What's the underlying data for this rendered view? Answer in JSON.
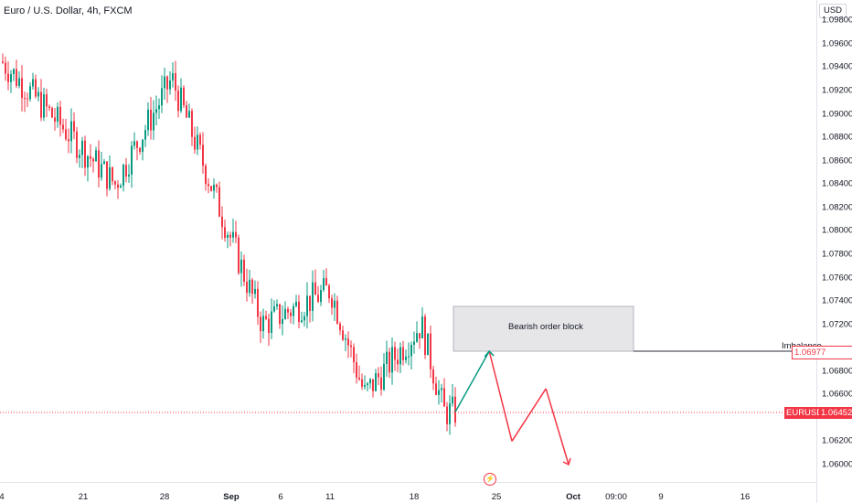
{
  "header": {
    "title": "Euro / U.S. Dollar, 4h, FXCM"
  },
  "price_axis": {
    "currency": "USD",
    "ticks": [
      "1.09800",
      "1.09600",
      "1.09400",
      "1.09200",
      "1.09000",
      "1.08800",
      "1.08600",
      "1.08400",
      "1.08200",
      "1.08000",
      "1.07800",
      "1.07600",
      "1.07400",
      "1.07200",
      "1.06800",
      "1.06600",
      "1.06200",
      "1.06000"
    ]
  },
  "time_axis": {
    "ticks": [
      "4",
      "21",
      "28",
      "Sep",
      "6",
      "11",
      "18",
      "25",
      "Oct",
      "09:00",
      "9",
      "16"
    ]
  },
  "annotations": {
    "order_block_label": "Bearish order block",
    "imbalance_label": "Imbalance",
    "imbalance_value": "1.06977",
    "symbol_label": "EURUSD",
    "current_value": "1.06452",
    "alert_icon": "lightning-bolt-icon"
  },
  "colors": {
    "up": "#089981",
    "down": "#f23645",
    "projection_up": "#089981",
    "projection_down": "#f23645",
    "order_block_fill": "#e6e6e9",
    "current_price_line": "#f23645"
  },
  "chart_data": {
    "type": "candlestick",
    "title": "Euro / U.S. Dollar, 4h, FXCM",
    "ylabel": "USD",
    "ylim": [
      1.0585,
      1.0995
    ],
    "x_range": [
      "2023-08-14",
      "2023-10-21"
    ],
    "current_price": 1.06452,
    "key_closes": [
      {
        "date": "2023-08-14",
        "close": 1.0945
      },
      {
        "date": "2023-08-24",
        "close": 1.084
      },
      {
        "date": "2023-08-29",
        "close": 1.093
      },
      {
        "date": "2023-09-06",
        "close": 1.072
      },
      {
        "date": "2023-09-12",
        "close": 1.075
      },
      {
        "date": "2023-09-15",
        "close": 1.066
      },
      {
        "date": "2023-09-20",
        "close": 1.072
      },
      {
        "date": "2023-09-22",
        "close": 1.0645
      }
    ],
    "zones": [
      {
        "label": "Bearish order block",
        "from": "2023-09-20",
        "to": "2023-09-30",
        "low": 1.06977,
        "high": 1.0735
      }
    ],
    "levels": [
      {
        "label": "Imbalance",
        "value": 1.06977
      },
      {
        "label": "EURUSD",
        "value": 1.06452
      }
    ],
    "projection": [
      {
        "date": "2023-09-23",
        "price": 1.0645
      },
      {
        "date": "2023-09-26",
        "price": 1.0697
      },
      {
        "date": "2023-09-28",
        "price": 1.062
      },
      {
        "date": "2023-10-01",
        "price": 1.0665
      },
      {
        "date": "2023-10-03",
        "price": 1.06
      }
    ]
  }
}
